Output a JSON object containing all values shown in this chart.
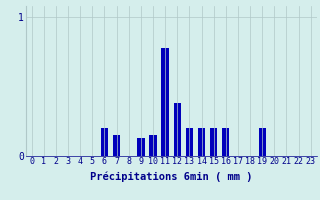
{
  "title": "",
  "xlabel": "Précipitations 6min ( mm )",
  "categories": [
    0,
    1,
    2,
    3,
    4,
    5,
    6,
    7,
    8,
    9,
    10,
    11,
    12,
    13,
    14,
    15,
    16,
    17,
    18,
    19,
    20,
    21,
    22,
    23
  ],
  "values": [
    0,
    0,
    0,
    0,
    0,
    0,
    0.2,
    0.15,
    0,
    0.13,
    0.15,
    0.78,
    0.38,
    0.2,
    0.2,
    0.2,
    0.2,
    0,
    0,
    0.2,
    0,
    0,
    0,
    0
  ],
  "bar_color": "#0000bb",
  "bg_color": "#d5eeec",
  "plot_bg_color": "#d5eeec",
  "grid_color": "#b0c8c8",
  "yticks": [
    0,
    1
  ],
  "ylim": [
    0,
    1.08
  ],
  "xlim": [
    -0.5,
    23.5
  ],
  "tick_color": "#00008B",
  "label_color": "#00008B",
  "xlabel_fontsize": 7.5,
  "tick_fontsize": 6.0,
  "bar_width": 0.6
}
